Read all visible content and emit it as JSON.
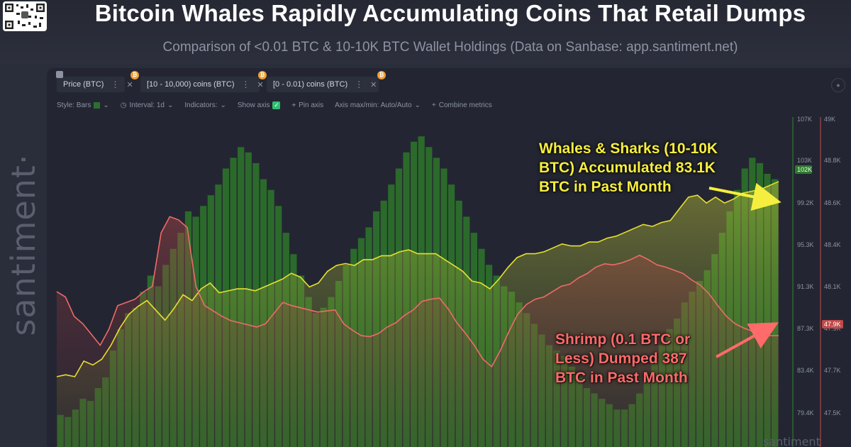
{
  "header": {
    "title": "Bitcoin Whales Rapidly Accumulating Coins That Retail Dumps",
    "subtitle": "Comparison of <0.01 BTC & 10-10K BTC Wallet Holdings (Data on Sanbase: app.santiment.net)"
  },
  "brand": {
    "side_logo": "santiment·",
    "watermark": "santiment"
  },
  "legend": [
    {
      "label": "Price (BTC)",
      "color": "#2e8b2e",
      "icon": "lock-icon"
    },
    {
      "label": "[10 - 10,000) coins (BTC)",
      "color": "#e6e030",
      "icon": "bitcoin-icon"
    },
    {
      "label": "[0 - 0.01) coins (BTC)",
      "color": "#f06a6a",
      "icon": "bitcoin-icon"
    }
  ],
  "toolbar": {
    "style": "Style: Bars",
    "interval": "Interval: 1d",
    "indicators": "Indicators:",
    "show_axis": "Show axis",
    "pin_axis": "Pin axis",
    "axis_minmax": "Axis max/min: Auto/Auto",
    "combine": "Combine metrics"
  },
  "annotations": {
    "whales": "Whales & Sharks (10-10K\nBTC) Accumulated 83.1K\nBTC in Past Month",
    "shrimp": "Shrimp (0.1 BTC or\nLess) Dumped 387\nBTC in Past Month"
  },
  "chart_data": {
    "type": "bar",
    "ylim": [
      77000,
      107800
    ],
    "y2lim": [
      47340,
      49030
    ],
    "y_ticks": [
      "107K",
      "103K",
      "99.2K",
      "95.3K",
      "91.3K",
      "87.3K",
      "83.4K",
      "79.4K"
    ],
    "y2_ticks": [
      "49K",
      "48.8K",
      "48.6K",
      "48.4K",
      "48.1K",
      "47.9K",
      "47.7K",
      "47.5K"
    ],
    "y_badge": "102K",
    "y2_badge": "47.9K",
    "series": [
      {
        "name": "Price (BTC)",
        "color": "#2e8b2e",
        "values": [
          80000,
          79800,
          80500,
          81500,
          81300,
          82500,
          83500,
          86000,
          88000,
          89500,
          90000,
          91500,
          93000,
          92000,
          94000,
          95500,
          97000,
          99000,
          98500,
          99500,
          100500,
          101500,
          103000,
          104000,
          105000,
          104500,
          103500,
          102000,
          101000,
          99500,
          97000,
          95000,
          93000,
          91000,
          89500,
          90000,
          91000,
          92500,
          94000,
          95500,
          96500,
          97500,
          99000,
          100000,
          101500,
          103000,
          104500,
          105500,
          106000,
          105000,
          104000,
          103000,
          101500,
          100000,
          98500,
          97000,
          95500,
          94000,
          93000,
          92000,
          91500,
          90500,
          89500,
          88500,
          87500,
          86500,
          86000,
          85500,
          84500,
          83500,
          82500,
          82000,
          81500,
          81000,
          80500,
          80500,
          81000,
          82000,
          83500,
          85000,
          86500,
          88000,
          89000,
          90500,
          91500,
          92500,
          93500,
          95000,
          97000,
          99000,
          101000,
          103000,
          104000,
          103500,
          102500,
          102000
        ]
      },
      {
        "name": "[10 - 10,000) coins (BTC)",
        "color": "#e6e030",
        "values": [
          47700,
          47710,
          47700,
          47780,
          47760,
          47790,
          47860,
          47950,
          48020,
          48060,
          48090,
          48040,
          47990,
          48050,
          48120,
          48090,
          48150,
          48180,
          48130,
          48140,
          48150,
          48150,
          48140,
          48160,
          48180,
          48200,
          48230,
          48210,
          48160,
          48180,
          48240,
          48270,
          48280,
          48270,
          48300,
          48300,
          48320,
          48320,
          48340,
          48350,
          48330,
          48330,
          48330,
          48300,
          48270,
          48240,
          48190,
          48180,
          48150,
          48200,
          48260,
          48310,
          48330,
          48330,
          48340,
          48360,
          48380,
          48370,
          48370,
          48390,
          48390,
          48410,
          48420,
          48440,
          48460,
          48480,
          48470,
          48490,
          48500,
          48560,
          48620,
          48630,
          48590,
          48620,
          48590,
          48610,
          48640,
          48650,
          48660,
          48680,
          48700
        ]
      },
      {
        "name": "[0 - 0.01) coins (BTC)",
        "color": "#f06a6a",
        "values": [
          91500,
          91000,
          89200,
          88500,
          87500,
          86500,
          88000,
          90200,
          90500,
          90800,
          91500,
          92000,
          97000,
          98500,
          98200,
          97500,
          92000,
          90200,
          89700,
          89200,
          88800,
          88600,
          88400,
          88200,
          88500,
          89500,
          90500,
          90200,
          90000,
          89800,
          89600,
          89700,
          89800,
          88500,
          87900,
          87400,
          87300,
          87600,
          88200,
          88600,
          89300,
          89800,
          90600,
          90800,
          90900,
          89900,
          88600,
          87600,
          86500,
          85200,
          84500,
          86000,
          87800,
          89400,
          90300,
          90800,
          91000,
          91500,
          92000,
          92200,
          92800,
          93200,
          93800,
          94100,
          94000,
          94200,
          94500,
          94900,
          94500,
          94000,
          93800,
          93500,
          93200,
          92600,
          92100,
          91300,
          90200,
          89200,
          88500,
          88100,
          87800,
          87500,
          87400,
          87400
        ]
      }
    ]
  }
}
